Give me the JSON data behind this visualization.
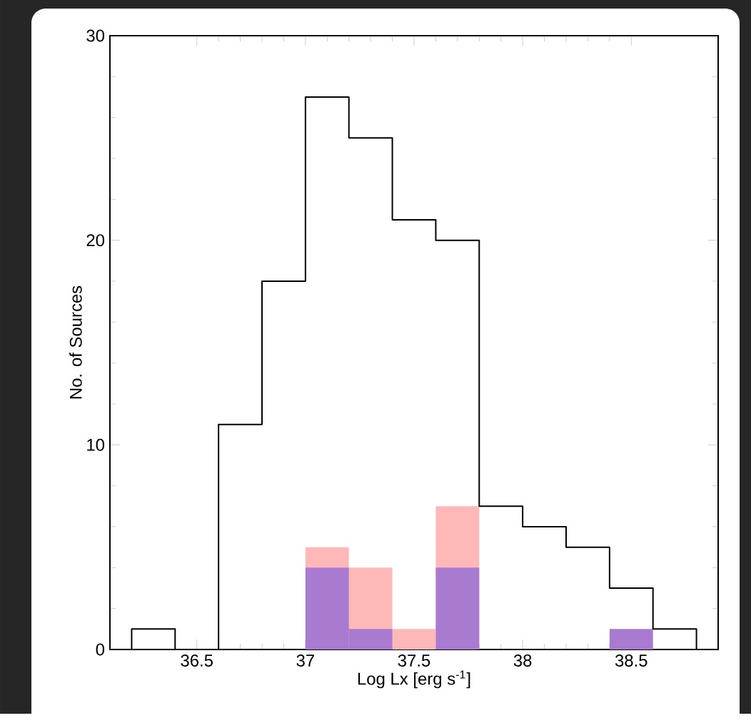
{
  "chart_data": {
    "type": "histogram",
    "xlabel": "Log Lx [erg s$^{-1}$]",
    "ylabel": "No. of Sources",
    "bins": [
      36.2,
      36.4,
      36.6,
      36.8,
      37.0,
      37.2,
      37.4,
      37.6,
      37.8,
      38.0,
      38.2,
      38.4,
      38.6,
      38.8
    ],
    "series": [
      {
        "color": "#000000",
        "values": [
          1,
          0,
          11,
          18,
          27,
          25,
          21,
          20,
          7,
          6,
          5,
          3,
          1
        ]
      },
      {
        "color": "#ffb8b8",
        "values": [
          0,
          0,
          0,
          0,
          5,
          4,
          1,
          7,
          0,
          0,
          0,
          null,
          0
        ]
      },
      {
        "color": "#a87ad0",
        "values": [
          0,
          0,
          0,
          0,
          4,
          1,
          0,
          4,
          0,
          0,
          0,
          1,
          0
        ]
      }
    ],
    "xlim": [
      36.1,
      38.9
    ],
    "ylim": [
      0,
      30
    ],
    "xticks": [
      36.5,
      37,
      37.5,
      38,
      38.5
    ],
    "yticks": [
      0,
      10,
      20,
      30
    ],
    "grid": false
  }
}
